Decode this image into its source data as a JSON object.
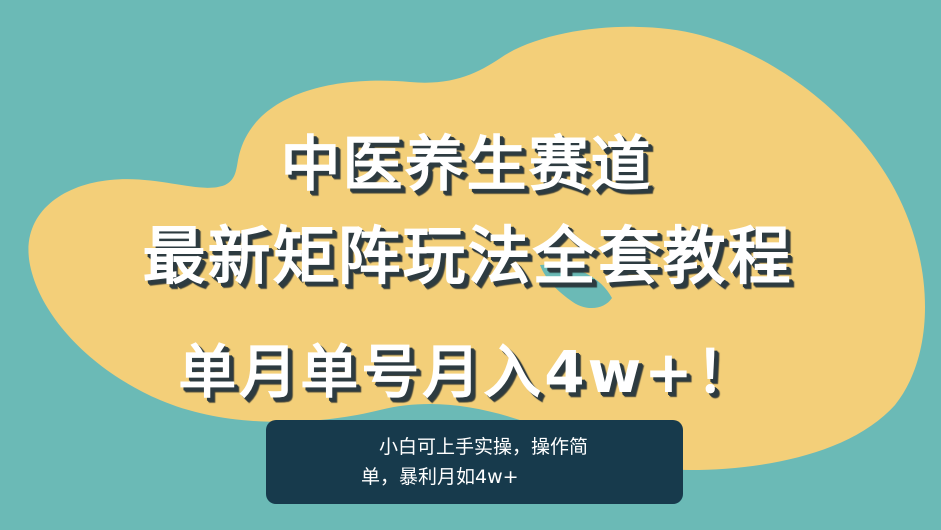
{
  "colors": {
    "background": "#6bbab6",
    "blob": "#f3cf79",
    "headline_text": "#ffffff",
    "headline_shadow": "#2d3b40",
    "note_box": "#173a4c",
    "note_text": "#ffffff"
  },
  "headline": {
    "line1": "中医养生赛道",
    "line2": "最新矩阵玩法全套教程",
    "line3": "单月单号月入4w+！"
  },
  "note": {
    "line1": "小白可上手实操，操作简",
    "line2": "单，暴利月如4w+"
  }
}
